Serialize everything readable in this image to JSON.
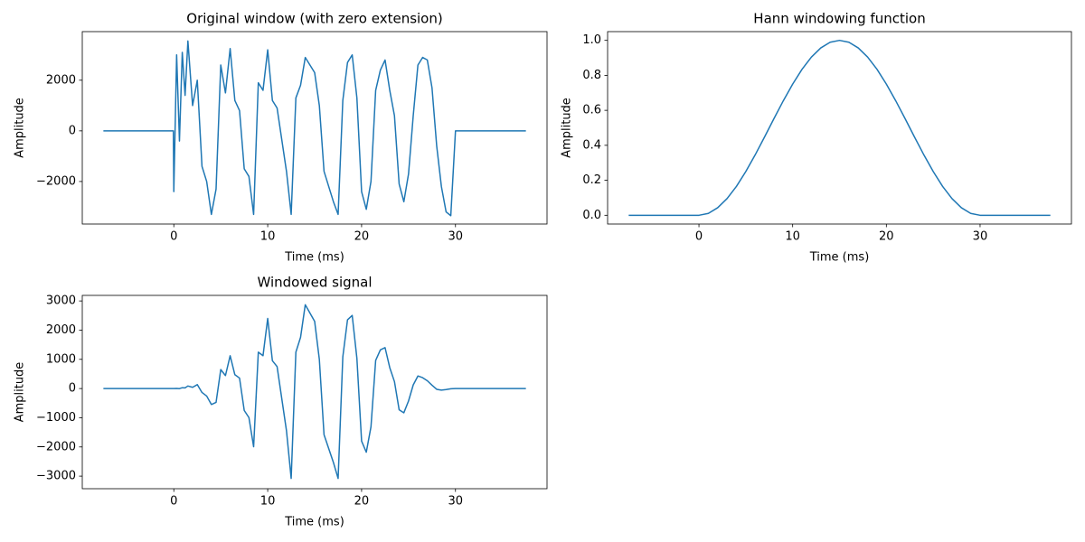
{
  "chart_data": [
    {
      "type": "line",
      "title": "Original window (with zero extension)",
      "xlabel": "Time (ms)",
      "ylabel": "Amplitude",
      "color": "#1f77b4",
      "x": [
        -7.5,
        -0.05,
        0,
        0.3,
        0.6,
        0.9,
        1.2,
        1.5,
        2,
        2.5,
        3,
        3.5,
        4,
        4.5,
        5,
        5.5,
        6,
        6.5,
        7,
        7.5,
        8,
        8.5,
        9,
        9.5,
        10,
        10.5,
        11,
        12,
        12.5,
        13,
        13.5,
        14,
        15,
        15.5,
        16,
        17,
        17.5,
        18,
        18.5,
        19,
        19.5,
        20,
        20.5,
        21,
        21.5,
        22,
        22.5,
        23,
        23.5,
        24,
        24.5,
        25,
        25.5,
        26,
        26.5,
        27,
        27.5,
        28,
        28.5,
        29,
        29.5,
        30,
        37.5
      ],
      "values": [
        0,
        0,
        -2400,
        3000,
        -400,
        3100,
        1400,
        3550,
        1000,
        2000,
        -1400,
        -2000,
        -3300,
        -2300,
        2600,
        1500,
        3250,
        1200,
        800,
        -1500,
        -1800,
        -3300,
        1900,
        1600,
        3200,
        1200,
        900,
        -1600,
        -3300,
        1300,
        1800,
        2900,
        2300,
        1000,
        -1600,
        -2800,
        -3300,
        1200,
        2700,
        3000,
        1300,
        -2400,
        -3100,
        -2000,
        1600,
        2400,
        2800,
        1600,
        600,
        -2100,
        -2800,
        -1700,
        600,
        2600,
        2900,
        2800,
        1700,
        -600,
        -2200,
        -3200,
        -3350,
        0,
        0
      ],
      "xlim": [
        -9.75,
        39.75
      ],
      "ylim": [
        -3680,
        3920
      ],
      "xticks": [
        0,
        10,
        20,
        30
      ],
      "yticks": [
        {
          "value": -2000,
          "label": "−2000"
        },
        0,
        2000
      ]
    },
    {
      "type": "line",
      "title": "Hann windowing function",
      "xlabel": "Time (ms)",
      "ylabel": "Amplitude",
      "color": "#1f77b4",
      "x": [
        -7.5,
        0,
        1,
        2,
        3,
        4,
        5,
        6,
        7,
        8,
        9,
        10,
        11,
        12,
        13,
        14,
        15,
        16,
        17,
        18,
        19,
        20,
        21,
        22,
        23,
        24,
        25,
        26,
        27,
        28,
        29,
        30,
        37.5
      ],
      "values": [
        0,
        0,
        0.0109,
        0.0432,
        0.0955,
        0.1654,
        0.25,
        0.3455,
        0.4477,
        0.5523,
        0.6545,
        0.75,
        0.8346,
        0.9045,
        0.9568,
        0.9891,
        1,
        0.9891,
        0.9568,
        0.9045,
        0.8346,
        0.75,
        0.6545,
        0.5523,
        0.4477,
        0.3455,
        0.25,
        0.1654,
        0.0955,
        0.0432,
        0.0109,
        0,
        0
      ],
      "xlim": [
        -9.75,
        39.75
      ],
      "ylim": [
        -0.05,
        1.05
      ],
      "xticks": [
        0,
        10,
        20,
        30
      ],
      "yticks": [
        {
          "value": 0,
          "label": "0.0"
        },
        0.2,
        0.4,
        0.6,
        0.8,
        {
          "value": 1,
          "label": "1.0"
        }
      ]
    },
    {
      "type": "line",
      "title": "Windowed signal",
      "xlabel": "Time (ms)",
      "ylabel": "Amplitude",
      "color": "#1f77b4",
      "x": [
        -7.5,
        0,
        0.3,
        0.6,
        0.9,
        1.2,
        1.5,
        2,
        2.5,
        3,
        3.5,
        4,
        4.5,
        5,
        5.5,
        6,
        6.5,
        7,
        7.5,
        8,
        8.5,
        9,
        9.5,
        10,
        10.5,
        11,
        12,
        12.5,
        13,
        13.5,
        14,
        15,
        15.5,
        16,
        17,
        17.5,
        18,
        18.5,
        19,
        19.5,
        20,
        20.5,
        21,
        21.5,
        22,
        22.5,
        23,
        23.5,
        24,
        24.5,
        25,
        25.5,
        26,
        26.5,
        27,
        27.5,
        28,
        28.5,
        29,
        29.5,
        30,
        37.5
      ],
      "values": [
        0,
        0,
        3,
        -2,
        28,
        22,
        87,
        43,
        134,
        -134,
        -257,
        -546,
        -474,
        650,
        445,
        1123,
        475,
        358,
        -750,
        -994,
        -1993,
        1244,
        1125,
        2400,
        953,
        751,
        -1447,
        -3079,
        1244,
        1756,
        2868,
        2300,
        997,
        -1583,
        -2533,
        -3079,
        1085,
        2353,
        2504,
        1032,
        -1800,
        -2181,
        -1309,
        966,
        1326,
        1400,
        716,
        238,
        -726,
        -830,
        -425,
        124,
        430,
        372,
        267,
        114,
        -26,
        -54,
        -35,
        -9,
        0,
        0
      ],
      "xlim": [
        -9.75,
        39.75
      ],
      "ylim": [
        -3430,
        3190
      ],
      "xticks": [
        0,
        10,
        20,
        30
      ],
      "yticks": [
        {
          "value": -3000,
          "label": "−3000"
        },
        {
          "value": -2000,
          "label": "−2000"
        },
        {
          "value": -1000,
          "label": "−1000"
        },
        0,
        1000,
        2000,
        3000
      ]
    }
  ]
}
